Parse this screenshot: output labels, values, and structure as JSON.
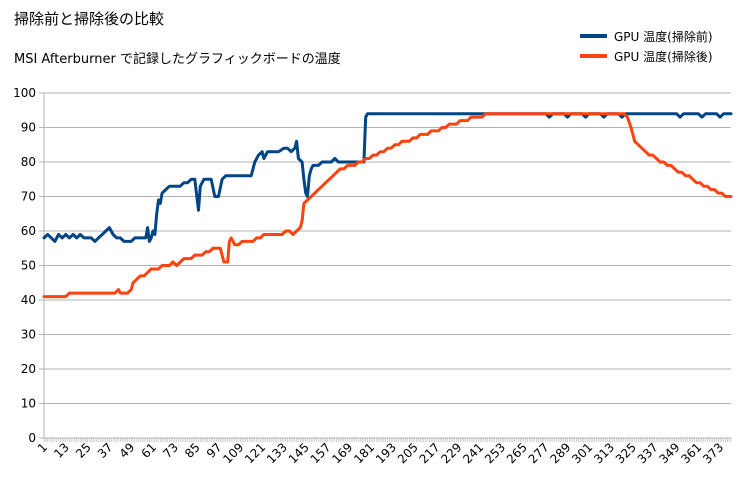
{
  "title": "掃除前と掃除後の比較",
  "subtitle": "MSI Afterburner で記録したグラフィックボードの温度",
  "colors": {
    "before": "#004586",
    "after": "#ff420e",
    "grid": "#b3b3b3",
    "axis": "#b3b3b3"
  },
  "chart_data": {
    "type": "line",
    "xlabel": "",
    "ylabel": "",
    "xlim": [
      1,
      379
    ],
    "ylim": [
      0,
      100
    ],
    "yticks": [
      0,
      10,
      20,
      30,
      40,
      50,
      60,
      70,
      80,
      90,
      100
    ],
    "xtick_labels": [
      "1",
      "13",
      "25",
      "37",
      "49",
      "61",
      "73",
      "85",
      "97",
      "109",
      "121",
      "133",
      "145",
      "157",
      "169",
      "181",
      "193",
      "205",
      "217",
      "229",
      "241",
      "253",
      "265",
      "277",
      "289",
      "301",
      "313",
      "325",
      "337",
      "349",
      "361",
      "373"
    ],
    "grid": true,
    "legend": "top-right",
    "series": [
      {
        "name": "GPU 温度(掃除前)",
        "color": "#004586",
        "points": [
          [
            1,
            58
          ],
          [
            3,
            59
          ],
          [
            5,
            58
          ],
          [
            7,
            57
          ],
          [
            9,
            59
          ],
          [
            11,
            58
          ],
          [
            13,
            59
          ],
          [
            15,
            58
          ],
          [
            17,
            59
          ],
          [
            19,
            58
          ],
          [
            21,
            59
          ],
          [
            23,
            58
          ],
          [
            25,
            58
          ],
          [
            27,
            58
          ],
          [
            29,
            57
          ],
          [
            31,
            58
          ],
          [
            33,
            59
          ],
          [
            35,
            60
          ],
          [
            37,
            61
          ],
          [
            39,
            59
          ],
          [
            41,
            58
          ],
          [
            43,
            58
          ],
          [
            45,
            57
          ],
          [
            47,
            57
          ],
          [
            49,
            57
          ],
          [
            51,
            58
          ],
          [
            53,
            58
          ],
          [
            55,
            58
          ],
          [
            57,
            58
          ],
          [
            58,
            61
          ],
          [
            59,
            57
          ],
          [
            60,
            58
          ],
          [
            61,
            60
          ],
          [
            62,
            59
          ],
          [
            63,
            65
          ],
          [
            64,
            69
          ],
          [
            65,
            68
          ],
          [
            66,
            71
          ],
          [
            68,
            72
          ],
          [
            70,
            73
          ],
          [
            72,
            73
          ],
          [
            74,
            73
          ],
          [
            76,
            73
          ],
          [
            78,
            74
          ],
          [
            80,
            74
          ],
          [
            82,
            75
          ],
          [
            84,
            75
          ],
          [
            86,
            66
          ],
          [
            87,
            73
          ],
          [
            89,
            75
          ],
          [
            91,
            75
          ],
          [
            93,
            75
          ],
          [
            95,
            70
          ],
          [
            97,
            70
          ],
          [
            99,
            75
          ],
          [
            101,
            76
          ],
          [
            103,
            76
          ],
          [
            105,
            76
          ],
          [
            107,
            76
          ],
          [
            109,
            76
          ],
          [
            111,
            76
          ],
          [
            113,
            76
          ],
          [
            115,
            76
          ],
          [
            117,
            80
          ],
          [
            119,
            82
          ],
          [
            121,
            83
          ],
          [
            122,
            81
          ],
          [
            124,
            83
          ],
          [
            127,
            83
          ],
          [
            130,
            83
          ],
          [
            133,
            84
          ],
          [
            135,
            84
          ],
          [
            137,
            83
          ],
          [
            139,
            84
          ],
          [
            140,
            86
          ],
          [
            141,
            81
          ],
          [
            143,
            80
          ],
          [
            144,
            75
          ],
          [
            145,
            71
          ],
          [
            146,
            70
          ],
          [
            147,
            76
          ],
          [
            148,
            78
          ],
          [
            149,
            79
          ],
          [
            152,
            79
          ],
          [
            154,
            80
          ],
          [
            157,
            80
          ],
          [
            159,
            80
          ],
          [
            161,
            81
          ],
          [
            163,
            80
          ],
          [
            165,
            80
          ],
          [
            167,
            80
          ],
          [
            169,
            80
          ],
          [
            171,
            80
          ],
          [
            173,
            80
          ],
          [
            175,
            80
          ],
          [
            177,
            80
          ],
          [
            178,
            93
          ],
          [
            179,
            94
          ],
          [
            181,
            94
          ],
          [
            190,
            94
          ],
          [
            200,
            94
          ],
          [
            210,
            94
          ],
          [
            220,
            94
          ],
          [
            230,
            94
          ],
          [
            240,
            94
          ],
          [
            250,
            94
          ],
          [
            260,
            94
          ],
          [
            270,
            94
          ],
          [
            277,
            94
          ],
          [
            279,
            93
          ],
          [
            281,
            94
          ],
          [
            287,
            94
          ],
          [
            289,
            93
          ],
          [
            291,
            94
          ],
          [
            297,
            94
          ],
          [
            299,
            93
          ],
          [
            301,
            94
          ],
          [
            307,
            94
          ],
          [
            309,
            93
          ],
          [
            311,
            94
          ],
          [
            317,
            94
          ],
          [
            319,
            93
          ],
          [
            321,
            94
          ],
          [
            331,
            94
          ],
          [
            341,
            94
          ],
          [
            349,
            94
          ],
          [
            351,
            93
          ],
          [
            353,
            94
          ],
          [
            361,
            94
          ],
          [
            363,
            93
          ],
          [
            365,
            94
          ],
          [
            371,
            94
          ],
          [
            373,
            93
          ],
          [
            375,
            94
          ],
          [
            379,
            94
          ]
        ]
      },
      {
        "name": "GPU 温度(掃除後)",
        "color": "#ff420e",
        "points": [
          [
            1,
            41
          ],
          [
            3,
            41
          ],
          [
            5,
            41
          ],
          [
            7,
            41
          ],
          [
            9,
            41
          ],
          [
            11,
            41
          ],
          [
            13,
            41
          ],
          [
            15,
            42
          ],
          [
            17,
            42
          ],
          [
            20,
            42
          ],
          [
            25,
            42
          ],
          [
            30,
            42
          ],
          [
            35,
            42
          ],
          [
            40,
            42
          ],
          [
            42,
            43
          ],
          [
            43,
            42
          ],
          [
            45,
            42
          ],
          [
            47,
            42
          ],
          [
            49,
            43
          ],
          [
            50,
            45
          ],
          [
            52,
            46
          ],
          [
            54,
            47
          ],
          [
            56,
            47
          ],
          [
            58,
            48
          ],
          [
            60,
            49
          ],
          [
            62,
            49
          ],
          [
            64,
            49
          ],
          [
            66,
            50
          ],
          [
            68,
            50
          ],
          [
            70,
            50
          ],
          [
            72,
            51
          ],
          [
            74,
            50
          ],
          [
            76,
            51
          ],
          [
            78,
            52
          ],
          [
            80,
            52
          ],
          [
            82,
            52
          ],
          [
            84,
            53
          ],
          [
            86,
            53
          ],
          [
            88,
            53
          ],
          [
            90,
            54
          ],
          [
            92,
            54
          ],
          [
            94,
            55
          ],
          [
            96,
            55
          ],
          [
            98,
            55
          ],
          [
            100,
            51
          ],
          [
            102,
            51
          ],
          [
            103,
            57
          ],
          [
            104,
            58
          ],
          [
            106,
            56
          ],
          [
            108,
            56
          ],
          [
            110,
            57
          ],
          [
            113,
            57
          ],
          [
            116,
            57
          ],
          [
            118,
            58
          ],
          [
            120,
            58
          ],
          [
            122,
            59
          ],
          [
            125,
            59
          ],
          [
            128,
            59
          ],
          [
            130,
            59
          ],
          [
            132,
            59
          ],
          [
            134,
            60
          ],
          [
            136,
            60
          ],
          [
            138,
            59
          ],
          [
            140,
            60
          ],
          [
            142,
            61
          ],
          [
            143,
            63
          ],
          [
            144,
            68
          ],
          [
            146,
            69
          ],
          [
            148,
            70
          ],
          [
            150,
            71
          ],
          [
            152,
            72
          ],
          [
            154,
            73
          ],
          [
            156,
            74
          ],
          [
            158,
            75
          ],
          [
            160,
            76
          ],
          [
            162,
            77
          ],
          [
            164,
            78
          ],
          [
            166,
            78
          ],
          [
            168,
            79
          ],
          [
            170,
            79
          ],
          [
            172,
            79
          ],
          [
            174,
            80
          ],
          [
            176,
            80
          ],
          [
            178,
            81
          ],
          [
            180,
            81
          ],
          [
            182,
            82
          ],
          [
            184,
            82
          ],
          [
            186,
            83
          ],
          [
            188,
            83
          ],
          [
            190,
            84
          ],
          [
            192,
            84
          ],
          [
            194,
            85
          ],
          [
            196,
            85
          ],
          [
            198,
            86
          ],
          [
            200,
            86
          ],
          [
            202,
            86
          ],
          [
            204,
            87
          ],
          [
            206,
            87
          ],
          [
            208,
            88
          ],
          [
            210,
            88
          ],
          [
            212,
            88
          ],
          [
            214,
            89
          ],
          [
            216,
            89
          ],
          [
            218,
            89
          ],
          [
            220,
            90
          ],
          [
            222,
            90
          ],
          [
            224,
            91
          ],
          [
            226,
            91
          ],
          [
            228,
            91
          ],
          [
            230,
            92
          ],
          [
            232,
            92
          ],
          [
            234,
            92
          ],
          [
            236,
            93
          ],
          [
            238,
            93
          ],
          [
            240,
            93
          ],
          [
            242,
            93
          ],
          [
            244,
            94
          ],
          [
            250,
            94
          ],
          [
            260,
            94
          ],
          [
            270,
            94
          ],
          [
            280,
            94
          ],
          [
            290,
            94
          ],
          [
            300,
            94
          ],
          [
            310,
            94
          ],
          [
            318,
            94
          ],
          [
            320,
            94
          ],
          [
            322,
            93
          ],
          [
            324,
            90
          ],
          [
            326,
            86
          ],
          [
            328,
            85
          ],
          [
            330,
            84
          ],
          [
            332,
            83
          ],
          [
            334,
            82
          ],
          [
            336,
            82
          ],
          [
            338,
            81
          ],
          [
            340,
            80
          ],
          [
            342,
            80
          ],
          [
            344,
            79
          ],
          [
            346,
            79
          ],
          [
            348,
            78
          ],
          [
            350,
            77
          ],
          [
            352,
            77
          ],
          [
            354,
            76
          ],
          [
            356,
            76
          ],
          [
            358,
            75
          ],
          [
            360,
            74
          ],
          [
            362,
            74
          ],
          [
            364,
            73
          ],
          [
            366,
            73
          ],
          [
            368,
            72
          ],
          [
            370,
            72
          ],
          [
            372,
            71
          ],
          [
            374,
            71
          ],
          [
            376,
            70
          ],
          [
            378,
            70
          ],
          [
            379,
            70
          ]
        ]
      }
    ]
  }
}
